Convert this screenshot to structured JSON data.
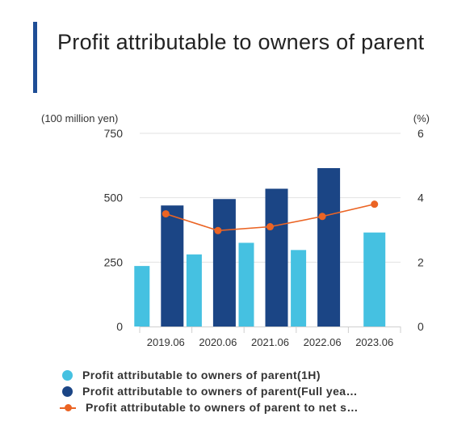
{
  "title": "Profit attributable to owners of parent",
  "colors": {
    "accent_bar": "#1f4e96",
    "series_1h": "#45c1e1",
    "series_full": "#1b4585",
    "series_ratio": "#eb6424",
    "grid": "#e2e2e2",
    "axis_text": "#333333"
  },
  "chart_data": {
    "type": "bar",
    "categories": [
      "2019.06",
      "2020.06",
      "2021.06",
      "2022.06",
      "2023.06"
    ],
    "left_axis_unit": "(100 million yen)",
    "right_axis_unit": "(%)",
    "ylim": [
      0,
      750
    ],
    "y2lim": [
      0,
      6
    ],
    "y_ticks": [
      "0",
      "250",
      "500",
      "750"
    ],
    "y2_ticks": [
      "0",
      "2",
      "4",
      "6"
    ],
    "grid": true,
    "legend_position": "bottom",
    "series": [
      {
        "name": "Profit attributable to owners of parent(1H)",
        "kind": "bar",
        "values": [
          235,
          280,
          325,
          297,
          365
        ]
      },
      {
        "name": "Profit attributable to owners of parent(Full yea…",
        "kind": "bar",
        "values": [
          470,
          495,
          535,
          615,
          null
        ]
      },
      {
        "name": "Profit attributable to owners of parent to net s…",
        "kind": "line",
        "axis": "right",
        "values": [
          3.5,
          2.98,
          3.1,
          3.42,
          3.8
        ]
      }
    ]
  }
}
